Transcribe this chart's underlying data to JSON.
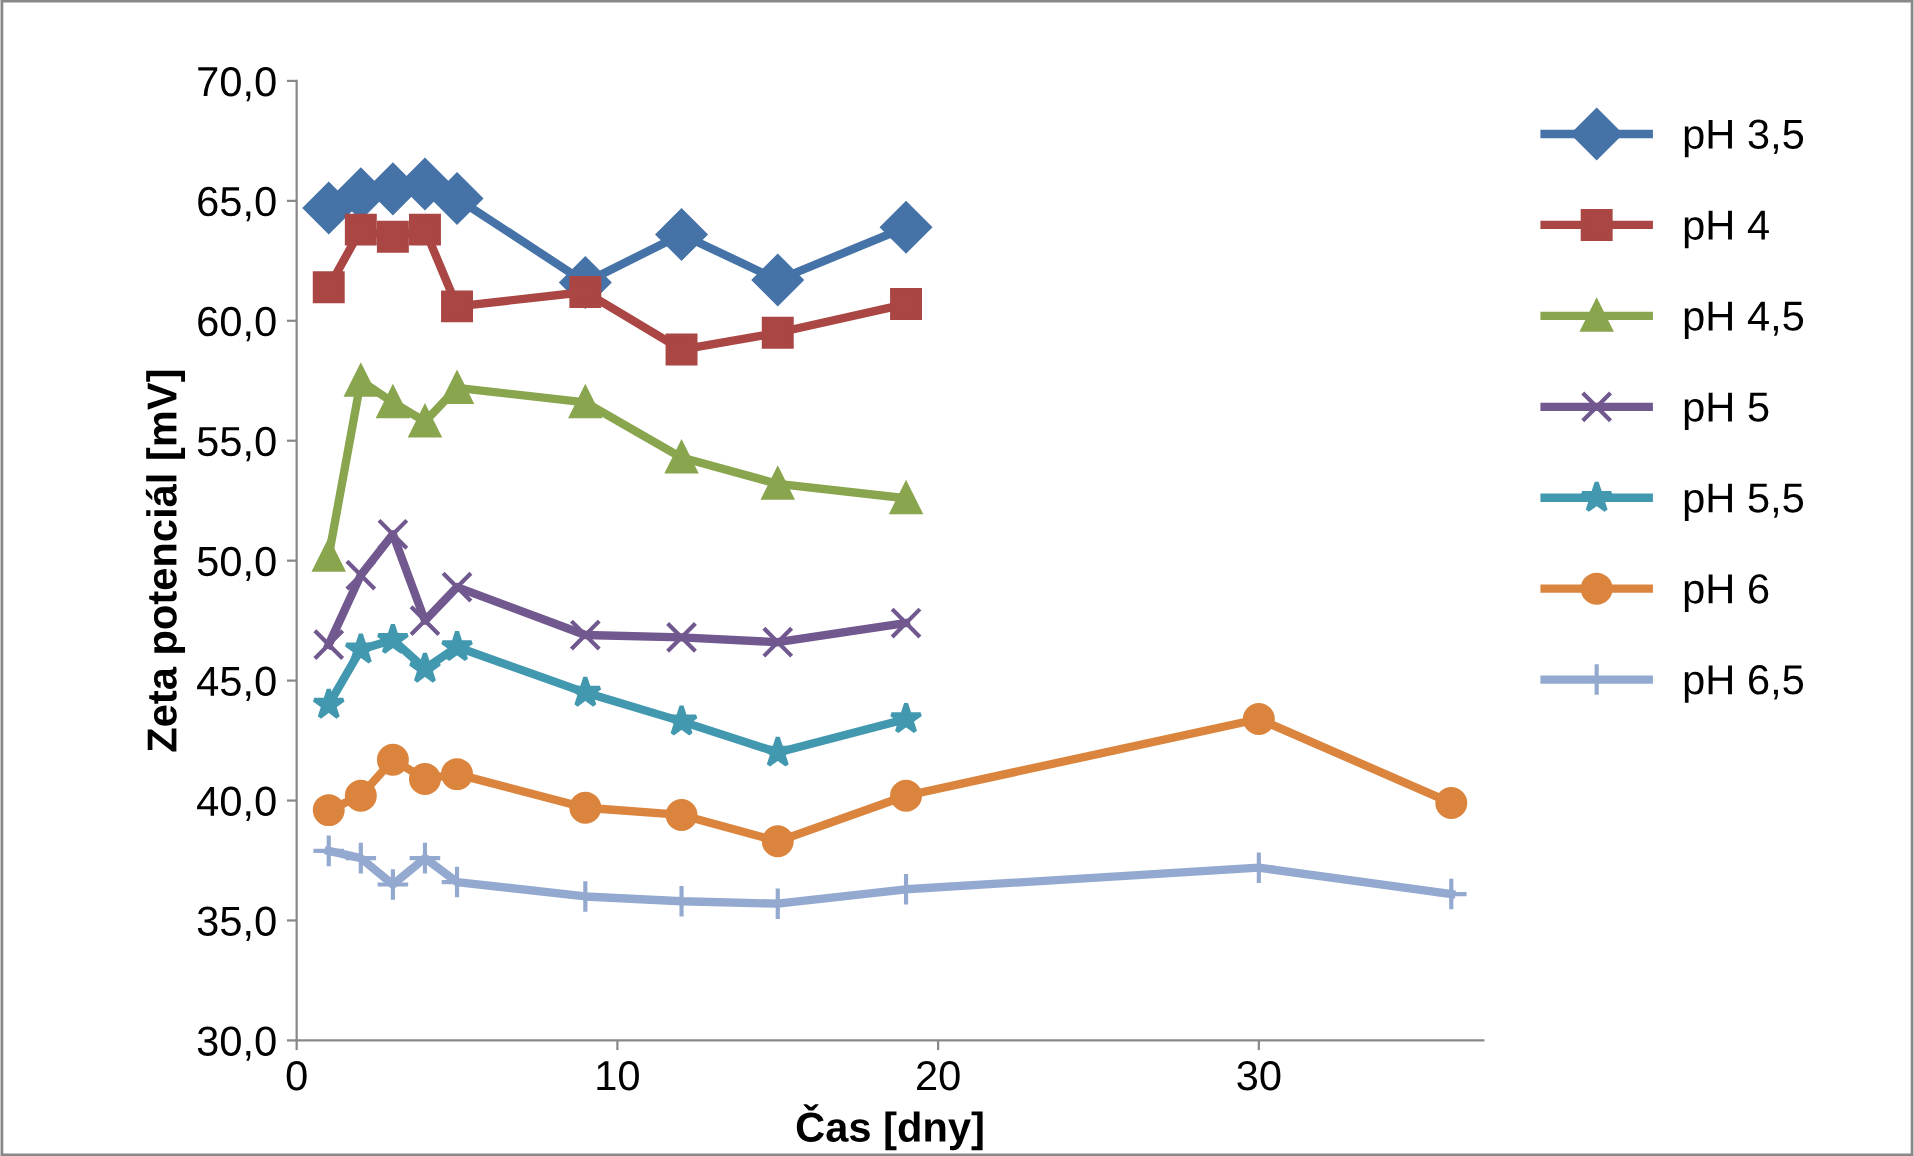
{
  "chart_data": {
    "type": "line",
    "xlabel": "Čas [dny]",
    "ylabel": "Zeta potenciál [mV]",
    "xlim": [
      0,
      37
    ],
    "xticks": [
      0,
      10,
      20,
      30
    ],
    "ylim": [
      30,
      70
    ],
    "yticks": [
      {
        "value": 30,
        "label": "30,0"
      },
      {
        "value": 35,
        "label": "35,0"
      },
      {
        "value": 40,
        "label": "40,0"
      },
      {
        "value": 45,
        "label": "45,0"
      },
      {
        "value": 50,
        "label": "50,0"
      },
      {
        "value": 55,
        "label": "55,0"
      },
      {
        "value": 60,
        "label": "60,0"
      },
      {
        "value": 65,
        "label": "65,0"
      },
      {
        "value": 70,
        "label": "70,0"
      }
    ],
    "grid": false,
    "legend": "right",
    "series": [
      {
        "name": "pH 3,5",
        "color": "#4572a7",
        "marker": "diamond",
        "x": [
          1,
          2,
          3,
          4,
          5,
          9,
          12,
          15,
          19
        ],
        "values": [
          64.7,
          65.3,
          65.5,
          65.7,
          65.1,
          61.6,
          63.6,
          61.7,
          63.9
        ]
      },
      {
        "name": "pH 4",
        "color": "#aa4643",
        "marker": "square",
        "x": [
          1,
          2,
          3,
          4,
          5,
          9,
          12,
          15,
          19
        ],
        "values": [
          61.4,
          63.8,
          63.5,
          63.8,
          60.6,
          61.2,
          58.8,
          59.5,
          60.7
        ]
      },
      {
        "name": "pH 4,5",
        "color": "#89a54e",
        "marker": "triangle",
        "x": [
          1,
          2,
          3,
          4,
          5,
          9,
          12,
          15,
          19
        ],
        "values": [
          50.2,
          57.5,
          56.6,
          55.8,
          57.2,
          56.6,
          54.3,
          53.2,
          52.6
        ]
      },
      {
        "name": "pH 5",
        "color": "#71588f",
        "marker": "cross",
        "x": [
          1,
          2,
          3,
          4,
          5,
          9,
          12,
          15,
          19
        ],
        "values": [
          46.5,
          49.4,
          51.1,
          47.5,
          48.9,
          46.9,
          46.8,
          46.6,
          47.4
        ]
      },
      {
        "name": "pH 5,5",
        "color": "#4198af",
        "marker": "star",
        "x": [
          1,
          2,
          3,
          4,
          5,
          9,
          12,
          15,
          19
        ],
        "values": [
          44.0,
          46.3,
          46.7,
          45.5,
          46.4,
          44.5,
          43.3,
          42.0,
          43.4
        ]
      },
      {
        "name": "pH 6",
        "color": "#db843d",
        "marker": "circle",
        "x": [
          1,
          2,
          3,
          4,
          5,
          9,
          12,
          15,
          19,
          30,
          36
        ],
        "values": [
          39.6,
          40.2,
          41.7,
          40.9,
          41.1,
          39.7,
          39.4,
          38.3,
          40.2,
          43.4,
          39.9
        ]
      },
      {
        "name": "pH 6,5",
        "color": "#93a9cf",
        "marker": "plus",
        "x": [
          1,
          2,
          3,
          4,
          5,
          9,
          12,
          15,
          19,
          30,
          36
        ],
        "values": [
          37.9,
          37.6,
          36.5,
          37.6,
          36.6,
          36.0,
          35.8,
          35.7,
          36.3,
          37.2,
          36.1
        ]
      }
    ]
  }
}
